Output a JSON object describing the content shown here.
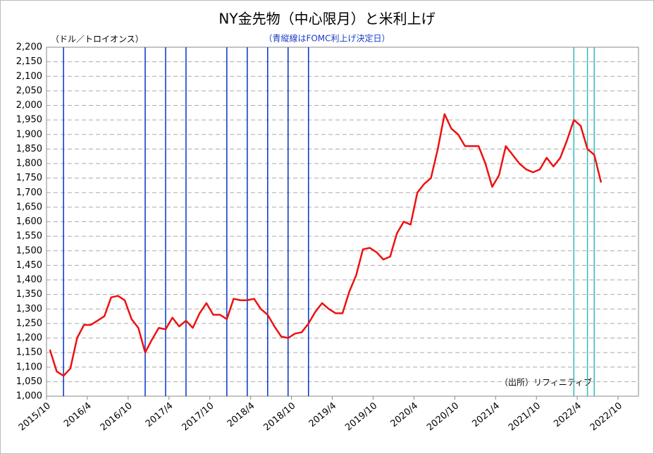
{
  "chart_data": {
    "type": "line",
    "title": "NY金先物（中心限月）と米利上げ",
    "subtitle": "（青縦線はFOMC利上げ決定日）",
    "y_label": "（ドル／トロイオンス）",
    "source": "（出所）リフィニティブ",
    "x": [
      "2015/10",
      "2015/11",
      "2015/12",
      "2016/1",
      "2016/2",
      "2016/3",
      "2016/4",
      "2016/5",
      "2016/6",
      "2016/7",
      "2016/8",
      "2016/9",
      "2016/10",
      "2016/11",
      "2016/12",
      "2017/1",
      "2017/2",
      "2017/3",
      "2017/4",
      "2017/5",
      "2017/6",
      "2017/7",
      "2017/8",
      "2017/9",
      "2017/10",
      "2017/11",
      "2017/12",
      "2018/1",
      "2018/2",
      "2018/3",
      "2018/4",
      "2018/5",
      "2018/6",
      "2018/7",
      "2018/8",
      "2018/9",
      "2018/10",
      "2018/11",
      "2018/12",
      "2019/1",
      "2019/2",
      "2019/3",
      "2019/4",
      "2019/5",
      "2019/6",
      "2019/7",
      "2019/8",
      "2019/9",
      "2019/10",
      "2019/11",
      "2019/12",
      "2020/1",
      "2020/2",
      "2020/3",
      "2020/4",
      "2020/5",
      "2020/6",
      "2020/7",
      "2020/8",
      "2020/9",
      "2020/10",
      "2020/11",
      "2020/12",
      "2021/1",
      "2021/2",
      "2021/3",
      "2021/4",
      "2021/5",
      "2021/6",
      "2021/7",
      "2021/8",
      "2021/9",
      "2021/10",
      "2021/11",
      "2021/12",
      "2022/1",
      "2022/2",
      "2022/3",
      "2022/4",
      "2022/5",
      "2022/6",
      "2022/7"
    ],
    "series": [
      {
        "name": "NY金先物",
        "color": "#ee1111",
        "values": [
          1160,
          1085,
          1070,
          1095,
          1200,
          1245,
          1245,
          1260,
          1275,
          1340,
          1345,
          1330,
          1265,
          1235,
          1150,
          1195,
          1235,
          1230,
          1270,
          1240,
          1260,
          1235,
          1285,
          1320,
          1280,
          1280,
          1265,
          1335,
          1330,
          1330,
          1335,
          1300,
          1280,
          1240,
          1205,
          1200,
          1215,
          1220,
          1250,
          1290,
          1320,
          1300,
          1285,
          1285,
          1360,
          1415,
          1505,
          1510,
          1495,
          1470,
          1480,
          1560,
          1600,
          1590,
          1700,
          1730,
          1750,
          1850,
          1970,
          1920,
          1900,
          1860,
          1860,
          1860,
          1800,
          1720,
          1760,
          1860,
          1830,
          1800,
          1780,
          1770,
          1780,
          1820,
          1790,
          1820,
          1880,
          1950,
          1930,
          1850,
          1830,
          1735
        ]
      }
    ],
    "vlines": [
      {
        "x": "2015/12",
        "color": "#0033cc"
      },
      {
        "x": "2016/12",
        "color": "#0033cc"
      },
      {
        "x": "2017/3",
        "color": "#0033cc"
      },
      {
        "x": "2017/6",
        "color": "#0033cc"
      },
      {
        "x": "2017/12",
        "color": "#0033cc"
      },
      {
        "x": "2018/3",
        "color": "#0033cc"
      },
      {
        "x": "2018/6",
        "color": "#0033cc"
      },
      {
        "x": "2018/9",
        "color": "#0033cc"
      },
      {
        "x": "2018/12",
        "color": "#0033cc"
      },
      {
        "x": "2022/3",
        "color": "#33bbbb"
      },
      {
        "x": "2022/5",
        "color": "#33bbbb"
      },
      {
        "x": "2022/6",
        "color": "#33bbbb"
      }
    ],
    "xlim": [
      "2015/10",
      "2023/1"
    ],
    "xticks": [
      "2015/10",
      "2016/4",
      "2016/10",
      "2017/4",
      "2017/10",
      "2018/4",
      "2018/10",
      "2019/4",
      "2019/10",
      "2020/4",
      "2020/10",
      "2021/4",
      "2021/10",
      "2022/4",
      "2022/10"
    ],
    "ylim": [
      1000,
      2200
    ],
    "yticks": [
      {
        "value": 1000,
        "label": "1,000"
      },
      {
        "value": 1050,
        "label": "1,050"
      },
      {
        "value": 1100,
        "label": "1,100"
      },
      {
        "value": 1150,
        "label": "1,150"
      },
      {
        "value": 1200,
        "label": "1,200"
      },
      {
        "value": 1250,
        "label": "1,250"
      },
      {
        "value": 1300,
        "label": "1,300"
      },
      {
        "value": 1350,
        "label": "1,350"
      },
      {
        "value": 1400,
        "label": "1,400"
      },
      {
        "value": 1450,
        "label": "1,450"
      },
      {
        "value": 1500,
        "label": "1,500"
      },
      {
        "value": 1550,
        "label": "1,550"
      },
      {
        "value": 1600,
        "label": "1,600"
      },
      {
        "value": 1650,
        "label": "1,650"
      },
      {
        "value": 1700,
        "label": "1,700"
      },
      {
        "value": 1750,
        "label": "1,750"
      },
      {
        "value": 1800,
        "label": "1,800"
      },
      {
        "value": 1850,
        "label": "1,850"
      },
      {
        "value": 1900,
        "label": "1,900"
      },
      {
        "value": 1950,
        "label": "1,950"
      },
      {
        "value": 2000,
        "label": "2,000"
      },
      {
        "value": 2050,
        "label": "2,050"
      },
      {
        "value": 2100,
        "label": "2,100"
      },
      {
        "value": 2150,
        "label": "2,150"
      },
      {
        "value": 2200,
        "label": "2,200"
      }
    ],
    "grid": true
  }
}
